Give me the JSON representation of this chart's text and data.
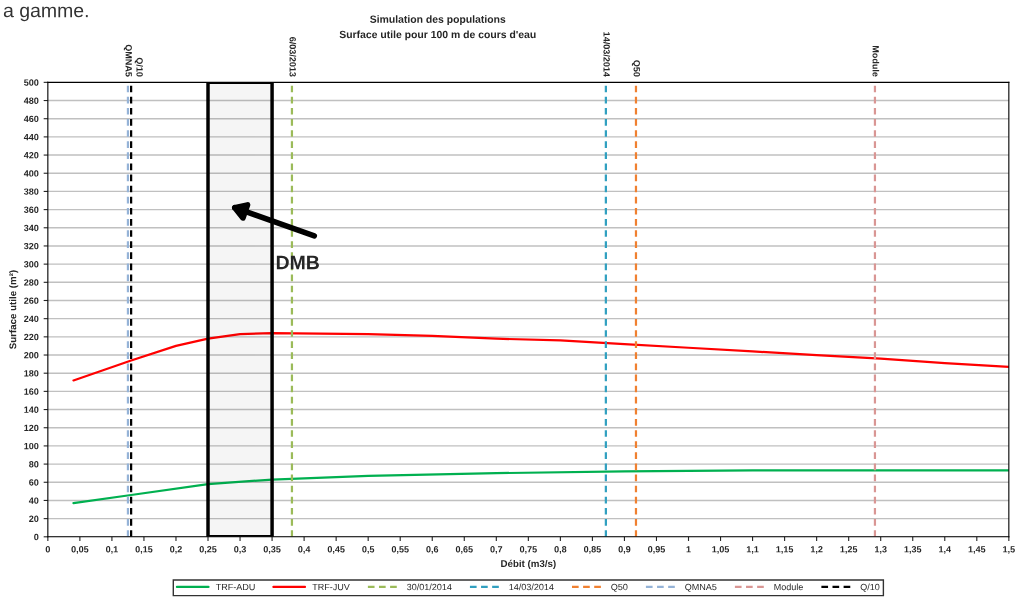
{
  "chart_data": {
    "type": "line",
    "title": "Simulation des populations",
    "subtitle": "Surface utile pour 100 m de cours d'eau",
    "xlabel": "Débit (m3/s)",
    "ylabel": "Surface utile (m²)",
    "xlim": [
      0,
      1.5
    ],
    "ylim": [
      0,
      500
    ],
    "xticks": [
      0,
      {
        "value": 0.05,
        "label": "0,05"
      },
      {
        "value": 0.1,
        "label": "0,1"
      },
      {
        "value": 0.15,
        "label": "0,15"
      },
      {
        "value": 0.2,
        "label": "0,2"
      },
      {
        "value": 0.25,
        "label": "0,25"
      },
      {
        "value": 0.3,
        "label": "0,3"
      },
      {
        "value": 0.35,
        "label": "0,35"
      },
      {
        "value": 0.4,
        "label": "0,4"
      },
      {
        "value": 0.45,
        "label": "0,45"
      },
      {
        "value": 0.5,
        "label": "0,5"
      },
      {
        "value": 0.55,
        "label": "0,55"
      },
      {
        "value": 0.6,
        "label": "0,6"
      },
      {
        "value": 0.65,
        "label": "0,65"
      },
      {
        "value": 0.7,
        "label": "0,7"
      },
      {
        "value": 0.75,
        "label": "0,75"
      },
      {
        "value": 0.8,
        "label": "0,8"
      },
      {
        "value": 0.85,
        "label": "0,85"
      },
      {
        "value": 0.9,
        "label": "0,9"
      },
      {
        "value": 0.95,
        "label": "0,95"
      },
      1,
      {
        "value": 1.05,
        "label": "1,05"
      },
      {
        "value": 1.1,
        "label": "1,1"
      },
      {
        "value": 1.15,
        "label": "1,15"
      },
      {
        "value": 1.2,
        "label": "1,2"
      },
      {
        "value": 1.25,
        "label": "1,25"
      },
      {
        "value": 1.3,
        "label": "1,3"
      },
      {
        "value": 1.35,
        "label": "1,35"
      },
      {
        "value": 1.4,
        "label": "1,4"
      },
      {
        "value": 1.45,
        "label": "1,45"
      },
      {
        "value": 1.5,
        "label": "1,5"
      }
    ],
    "yticks": [
      0,
      20,
      40,
      60,
      80,
      100,
      120,
      140,
      160,
      180,
      200,
      220,
      240,
      260,
      280,
      300,
      320,
      340,
      360,
      380,
      400,
      420,
      440,
      460,
      480,
      500
    ],
    "grid": "y",
    "legend": "bottom",
    "line_style": "solid",
    "series": [
      {
        "name": "TRF-ADU",
        "color": "#00b050",
        "x": [
          0.04,
          0.13,
          0.25,
          0.35,
          0.5,
          0.7,
          0.9,
          1.1,
          1.3,
          1.5
        ],
        "values": [
          37,
          46,
          58,
          63,
          67,
          70,
          72,
          73,
          73,
          73
        ]
      },
      {
        "name": "TRF-JUV",
        "color": "#ff0000",
        "x": [
          0.04,
          0.13,
          0.2,
          0.25,
          0.3,
          0.35,
          0.5,
          0.6,
          0.7,
          0.8,
          0.9,
          1.0,
          1.1,
          1.2,
          1.3,
          1.4,
          1.5
        ],
        "values": [
          172,
          194,
          210,
          218,
          223,
          224,
          223,
          221,
          218,
          216,
          212,
          208,
          204,
          200,
          196,
          191,
          187
        ]
      },
      {
        "name": "30/01/2014",
        "color": "#9bbb59",
        "line_style": "dashed",
        "x": [
          0.381,
          0.381
        ],
        "values": [
          0,
          500
        ]
      },
      {
        "name": "14/03/2014",
        "color": "#31a0c0",
        "line_style": "dashed",
        "x": [
          0.871,
          0.871
        ],
        "values": [
          0,
          500
        ]
      },
      {
        "name": "Q50",
        "color": "#f08030",
        "line_style": "dashed",
        "x": [
          0.918,
          0.918
        ],
        "values": [
          0,
          500
        ]
      },
      {
        "name": "QMNA5",
        "color": "#95b3d7",
        "line_style": "dashed",
        "x": [
          0.125,
          0.125
        ],
        "values": [
          0,
          500
        ]
      },
      {
        "name": "Module",
        "color": "#d99694",
        "line_style": "dashed",
        "x": [
          1.291,
          1.291
        ],
        "values": [
          0,
          500
        ]
      },
      {
        "name": "Q/10",
        "color": "#000000",
        "line_style": "dashed",
        "x": [
          0.13,
          0.13
        ],
        "values": [
          0,
          500
        ]
      }
    ],
    "bands": [
      {
        "axis": "x",
        "from": 0.25,
        "to": 0.35,
        "label": "DMB",
        "color": "#000000"
      }
    ],
    "annotations": [
      "a gamme.",
      "6/03/2013",
      "14/03/2014",
      "Q50",
      "QMNA5",
      "Module",
      "Q/10"
    ]
  }
}
